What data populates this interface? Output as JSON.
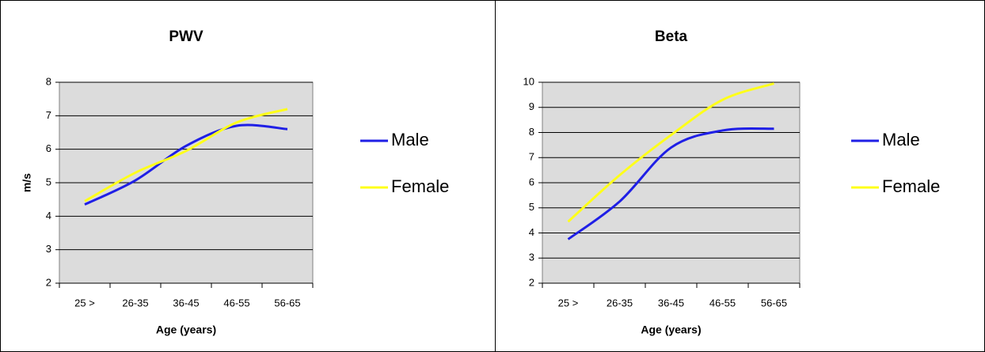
{
  "chart_data": [
    {
      "type": "line",
      "title": "PWV",
      "x_label": "Age (years)",
      "y_label": "m/s",
      "categories": [
        "25 >",
        "26-35",
        "36-45",
        "46-55",
        "56-65"
      ],
      "series": [
        {
          "name": "Male",
          "color": "#1f1fe6",
          "values": [
            4.35,
            5.07,
            6.1,
            6.7,
            6.6
          ]
        },
        {
          "name": "Female",
          "color": "#ffff1a",
          "values": [
            4.45,
            5.3,
            5.95,
            6.8,
            7.2
          ]
        }
      ],
      "ylim": [
        2,
        8
      ],
      "yticks": [
        2,
        3,
        4,
        5,
        6,
        7,
        8
      ],
      "grid": true,
      "legend": "right"
    },
    {
      "type": "line",
      "title": "Beta",
      "x_label": "Age (years)",
      "categories": [
        "25 >",
        "26-35",
        "36-45",
        "46-55",
        "56-65"
      ],
      "series": [
        {
          "name": "Male",
          "color": "#1f1fe6",
          "values": [
            3.75,
            5.25,
            7.4,
            8.08,
            8.15
          ]
        },
        {
          "name": "Female",
          "color": "#ffff1a",
          "values": [
            4.45,
            6.3,
            7.9,
            9.3,
            9.95
          ]
        }
      ],
      "ylim": [
        2,
        10
      ],
      "yticks": [
        2,
        3,
        4,
        5,
        6,
        7,
        8,
        9,
        10
      ],
      "grid": true,
      "legend": "right"
    }
  ]
}
